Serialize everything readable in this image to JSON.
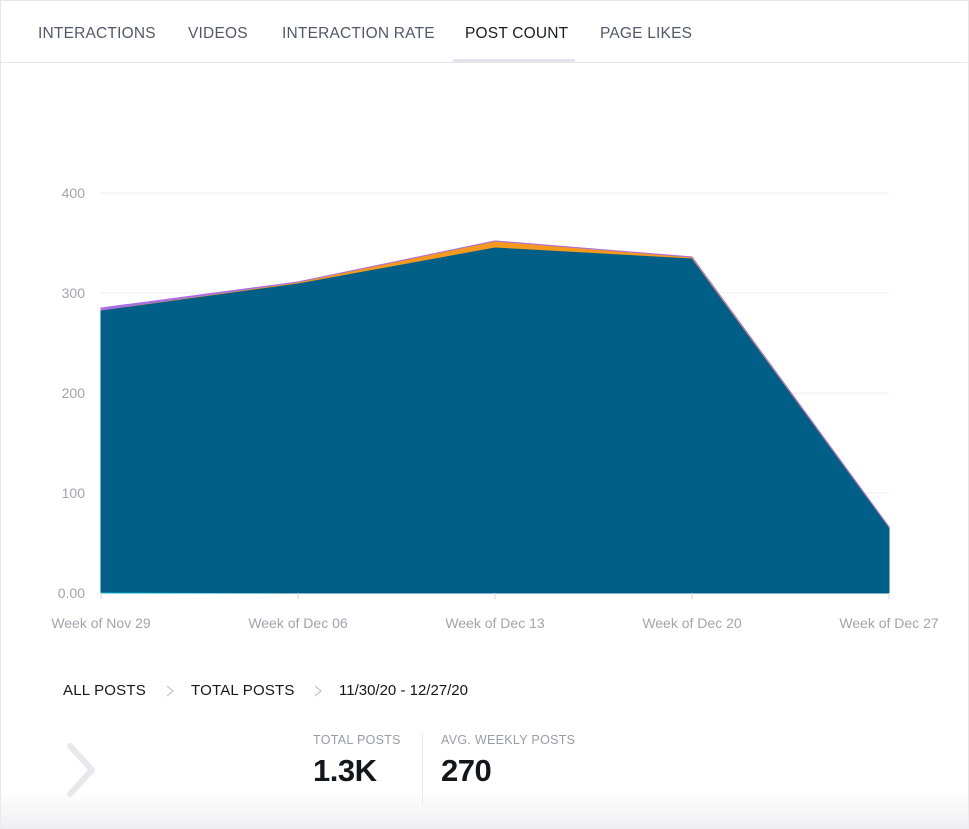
{
  "tabs": [
    {
      "label": "INTERACTIONS",
      "active": false
    },
    {
      "label": "VIDEOS",
      "active": false
    },
    {
      "label": "INTERACTION RATE",
      "active": false
    },
    {
      "label": "POST COUNT",
      "active": true
    },
    {
      "label": "PAGE LIKES",
      "active": false
    }
  ],
  "chart_data": {
    "type": "area",
    "stacked": true,
    "categories": [
      "Week of Nov 29",
      "Week of Dec 06",
      "Week of Dec 13",
      "Week of Dec 20",
      "Week of Dec 27"
    ],
    "y_ticks": [
      "0.00",
      "100",
      "200",
      "300",
      "400"
    ],
    "ylim": [
      0,
      400
    ],
    "grid": true,
    "legend": "none",
    "series": [
      {
        "color": "#00b8c8",
        "values": [
          1,
          0,
          0,
          0,
          0
        ]
      },
      {
        "color": "#005f86",
        "values": [
          282,
          310,
          346,
          335,
          66
        ]
      },
      {
        "color": "#f4981f",
        "values": [
          0,
          1,
          6,
          1,
          0
        ]
      },
      {
        "color": "#a86ee6",
        "values": [
          2,
          0,
          0,
          0,
          0
        ]
      }
    ]
  },
  "breadcrumb": {
    "level1": "ALL POSTS",
    "level2": "TOTAL POSTS",
    "range": "11/30/20 - 12/27/20"
  },
  "stats": {
    "total_label": "TOTAL POSTS",
    "total_value": "1.3K",
    "avg_label": "AVG. WEEKLY POSTS",
    "avg_value": "270"
  },
  "colors": {
    "area_primary": "#005f86",
    "grid": "#eeeef2",
    "axis_text": "#a3a3ae"
  }
}
